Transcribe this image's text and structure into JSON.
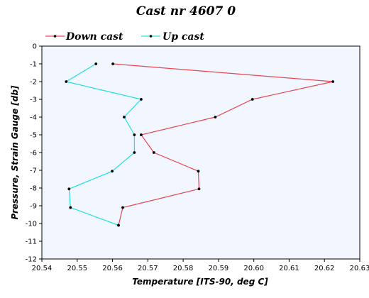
{
  "chart_data": {
    "type": "line",
    "title": "Cast nr 4607 0",
    "xlabel": "Temperature [ITS-90, deg C]",
    "ylabel": "Pressure, Strain Gauge [db]",
    "xlim": [
      20.54,
      20.63
    ],
    "ylim": [
      -12,
      0
    ],
    "xticks": [
      "20.54",
      "20.55",
      "20.56",
      "20.57",
      "20.58",
      "20.59",
      "20.60",
      "20.61",
      "20.62",
      "20.63"
    ],
    "yticks": [
      "0",
      "-1",
      "-2",
      "-3",
      "-4",
      "-5",
      "-6",
      "-7",
      "-8",
      "-9",
      "-10",
      "-11",
      "-12"
    ],
    "legend_position": "top-left",
    "grid": false,
    "series": [
      {
        "name": "Down cast",
        "color": "#e8474f",
        "x": [
          20.5601,
          20.6224,
          20.5996,
          20.5891,
          20.5681,
          20.5717,
          20.5843,
          20.5845,
          20.5629,
          20.5617
        ],
        "y": [
          -1,
          -2,
          -3,
          -4,
          -5,
          -6,
          -7.05,
          -8.05,
          -9.1,
          -10.1
        ]
      },
      {
        "name": "Up cast",
        "color": "#1ee0e0",
        "x": [
          20.5553,
          20.5469,
          20.5681,
          20.5633,
          20.5662,
          20.5662,
          20.5599,
          20.5477,
          20.5481,
          20.5617
        ],
        "y": [
          -1,
          -2,
          -3,
          -4,
          -5,
          -6,
          -7.05,
          -8.05,
          -9.1,
          -10.1
        ]
      }
    ]
  }
}
